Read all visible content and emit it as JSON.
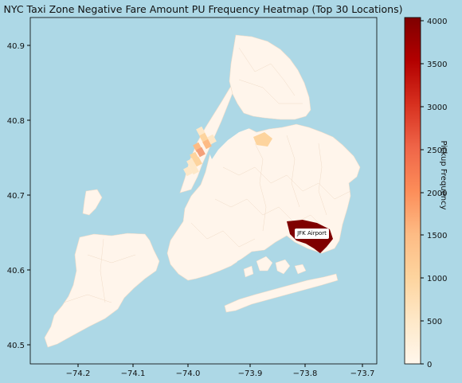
{
  "title": "NYC Taxi Zone Negative Fare Amount PU Frequency Heatmap (Top 30 Locations)",
  "colorbar": {
    "label": "Pickup Frequency",
    "ticks": [
      "0",
      "500",
      "1000",
      "1500",
      "2000",
      "2500",
      "3000",
      "3500",
      "4000"
    ],
    "min": 0,
    "max": 4050,
    "colormap": [
      "#fff7ec",
      "#fee8c8",
      "#fdd49e",
      "#fdbb84",
      "#fc8d59",
      "#ef6548",
      "#d7301f",
      "#b30000",
      "#7f0000"
    ]
  },
  "x_axis": {
    "ticks": [
      "−74.2",
      "−74.1",
      "−74.0",
      "−73.9",
      "−73.8",
      "−73.7"
    ]
  },
  "y_axis": {
    "ticks": [
      "40.5",
      "40.6",
      "40.7",
      "40.8",
      "40.9"
    ]
  },
  "annotation": "JFK Airport",
  "colors": {
    "background": "#add8e6",
    "land": "#fff5eb",
    "water": "#add8e6",
    "zone_border": "#f0dcc8"
  }
}
